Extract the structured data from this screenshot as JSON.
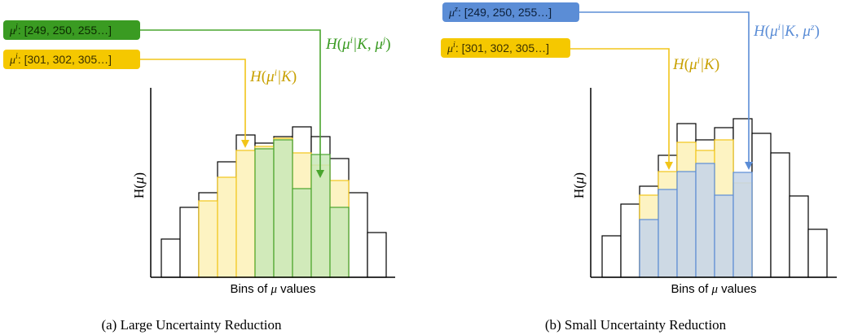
{
  "panel_a": {
    "caption": "(a) Large Uncertainty Reduction",
    "ylabel_h": "H(",
    "ylabel_mu": "μ",
    "ylabel_close": ")",
    "xlabel_prefix": "Bins of ",
    "xlabel_mu": "μ",
    "xlabel_suffix": " values",
    "tag_top": {
      "sym": "μ",
      "sup": "j",
      "values": ": [249, 250, 255…]",
      "color": "#3a9b22"
    },
    "tag_bottom": {
      "sym": "μ",
      "sup": "i",
      "values": ": [301, 302, 305…]",
      "color": "#f5c800"
    },
    "label_short": {
      "h": "H",
      "lp": "(",
      "mu": "μ",
      "sup": "i",
      "bar": "|K",
      "rp": ")"
    },
    "label_long": {
      "h": "H",
      "lp": "(",
      "mu": "μ",
      "sup": "i",
      "mid": "|K, ",
      "mu2": "μ",
      "sup2": "j",
      "rp": ")"
    }
  },
  "panel_b": {
    "caption": "(b) Small Uncertainty Reduction",
    "ylabel_h": "H(",
    "ylabel_mu": "μ",
    "ylabel_close": ")",
    "xlabel_prefix": "Bins of ",
    "xlabel_mu": "μ",
    "xlabel_suffix": " values",
    "tag_top": {
      "sym": "μ",
      "sup": "z",
      "values": ": [249, 250, 255…]",
      "color": "#5b8dd6"
    },
    "tag_bottom": {
      "sym": "μ",
      "sup": "i",
      "values": ": [301, 302, 305…]",
      "color": "#f5c800"
    },
    "label_short": {
      "h": "H",
      "lp": "(",
      "mu": "μ",
      "sup": "i",
      "bar": "|K",
      "rp": ")"
    },
    "label_long": {
      "h": "H",
      "lp": "(",
      "mu": "μ",
      "sup": "i",
      "mid": "|K, ",
      "mu2": "μ",
      "sup2": "z",
      "rp": ")"
    }
  },
  "colors": {
    "green_fill": "#c9e7b8",
    "green_stroke": "#4aa52e",
    "green_text": "#3a9b22",
    "yellow_fill": "#fdf3c2",
    "yellow_stroke": "#f2c51a",
    "yellow_text": "#c8a000",
    "blue_fill": "#c8d6e8",
    "blue_stroke": "#5b8dd6",
    "blue_text": "#5b8dd6",
    "tag_text_dark": "#2b4a10",
    "tag_text_yellow": "#3a3000"
  }
}
